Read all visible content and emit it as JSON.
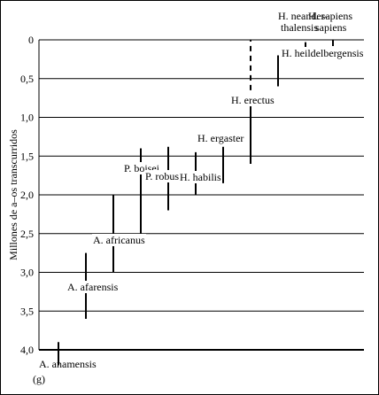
{
  "chart_data": {
    "type": "range",
    "panel_label": "(g)",
    "ylabel": "Millones de a–os transcurridos",
    "ylim": [
      0,
      4.0
    ],
    "yticks": [
      {
        "value": 0,
        "label": "0"
      },
      {
        "value": 0.5,
        "label": "0,5"
      },
      {
        "value": 1.0,
        "label": "1,0"
      },
      {
        "value": 1.5,
        "label": "1,5"
      },
      {
        "value": 2.0,
        "label": "2,0"
      },
      {
        "value": 2.5,
        "label": "2,5"
      },
      {
        "value": 3.0,
        "label": "3,0"
      },
      {
        "value": 3.5,
        "label": "3,5"
      },
      {
        "value": 4.0,
        "label": "4,0"
      }
    ],
    "grid": true,
    "taxa": [
      {
        "label": "A. anamensis",
        "x_order": 1,
        "start": 4.2,
        "end": 3.9
      },
      {
        "label": "A. afarensis",
        "x_order": 2,
        "start": 3.6,
        "end": 2.75
      },
      {
        "label": "A. africanus",
        "x_order": 3,
        "start": 3.0,
        "end": 2.0
      },
      {
        "label": "P. boisei",
        "x_order": 4,
        "start": 2.5,
        "end": 1.4
      },
      {
        "label": "P. robustus",
        "x_order": 5,
        "start": 2.2,
        "end": 1.38
      },
      {
        "label": "H. habilis",
        "x_order": 6,
        "start": 2.0,
        "end": 1.45
      },
      {
        "label": "H. ergaster",
        "x_order": 7,
        "start": 1.85,
        "end": 1.38
      },
      {
        "label": "H. erectus",
        "x_order": 8,
        "start": 1.6,
        "end": 0.85,
        "dashed_start": 0.65,
        "dashed_end": 0.0
      },
      {
        "label": "H. heildelbergensis",
        "x_order": 9,
        "start": 0.6,
        "end": 0.2
      },
      {
        "label": "H. neander-\nthalensis",
        "x_order": 10,
        "start": 0.12,
        "end": 0.03
      },
      {
        "label": "H. sapiens\nsapiens",
        "x_order": 11,
        "start": 0.08,
        "end": 0.0
      }
    ]
  }
}
